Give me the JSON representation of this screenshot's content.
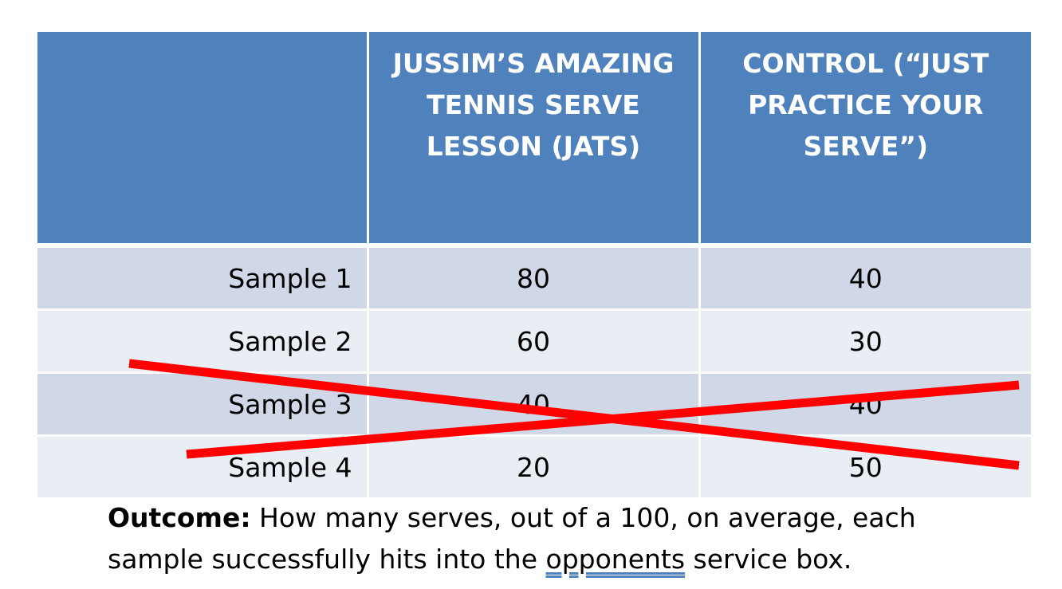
{
  "table": {
    "headers": [
      "",
      "JUSSIM’S AMAZING TENNIS SERVE LESSON (JATS)",
      "CONTROL (“JUST PRACTICE YOUR SERVE”)"
    ],
    "rows": [
      {
        "label": "Sample 1",
        "jats": "80",
        "control": "40"
      },
      {
        "label": "Sample 2",
        "jats": "60",
        "control": "30"
      },
      {
        "label": "Sample 3",
        "jats": "40",
        "control": "40"
      },
      {
        "label": "Sample 4",
        "jats": "20",
        "control": "50"
      }
    ],
    "crossed_out_rows": [
      "Sample 3",
      "Sample 4"
    ],
    "cross_color": "#ff0000"
  },
  "outcome": {
    "label": "Outcome:",
    "text_before": " How many serves, out of a 100, on average, each sample successfully hits into the ",
    "underlined_word": "opponents",
    "text_after": " service box."
  },
  "colors": {
    "header_bg": "#4f81bd",
    "row_dark": "#d0d8e8",
    "row_light": "#e9edf4"
  }
}
